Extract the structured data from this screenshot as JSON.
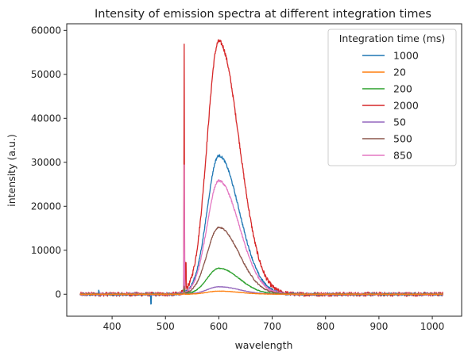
{
  "chart_data": {
    "type": "line",
    "title": "Intensity of emission spectra at different integration times",
    "xlabel": "wavelength",
    "ylabel": "intensity (a.u.)",
    "xlim": [
      315,
      1055
    ],
    "ylim": [
      -5000,
      61500
    ],
    "xticks": [
      400,
      500,
      600,
      700,
      800,
      900,
      1000
    ],
    "yticks": [
      0,
      10000,
      20000,
      30000,
      40000,
      50000,
      60000
    ],
    "grid": false,
    "legend": {
      "title": "Integration time (ms)",
      "placement": "top-right",
      "entries": [
        "1000",
        "20",
        "200",
        "2000",
        "50",
        "500",
        "850"
      ]
    },
    "x_range": [
      340,
      1020
    ],
    "shared_features": {
      "laser_line_wavelength": 535,
      "emission_peak_wavelength": 600,
      "noise_spike_near": [
        375,
        473
      ]
    },
    "series": [
      {
        "name": "1000",
        "color": "#1f77b4",
        "peak_intensity": 31500,
        "laser_spike": 3000
      },
      {
        "name": "20",
        "color": "#ff7f0e",
        "peak_intensity": 700,
        "laser_spike": 300
      },
      {
        "name": "200",
        "color": "#2ca02c",
        "peak_intensity": 5900,
        "laser_spike": 1000
      },
      {
        "name": "2000",
        "color": "#d62728",
        "peak_intensity": 57500,
        "laser_spike": 56000
      },
      {
        "name": "50",
        "color": "#9467bd",
        "peak_intensity": 1700,
        "laser_spike": 500
      },
      {
        "name": "500",
        "color": "#8c564b",
        "peak_intensity": 15200,
        "laser_spike": 1500
      },
      {
        "name": "850",
        "color": "#e377c2",
        "peak_intensity": 25800,
        "laser_spike": 29000
      }
    ]
  }
}
